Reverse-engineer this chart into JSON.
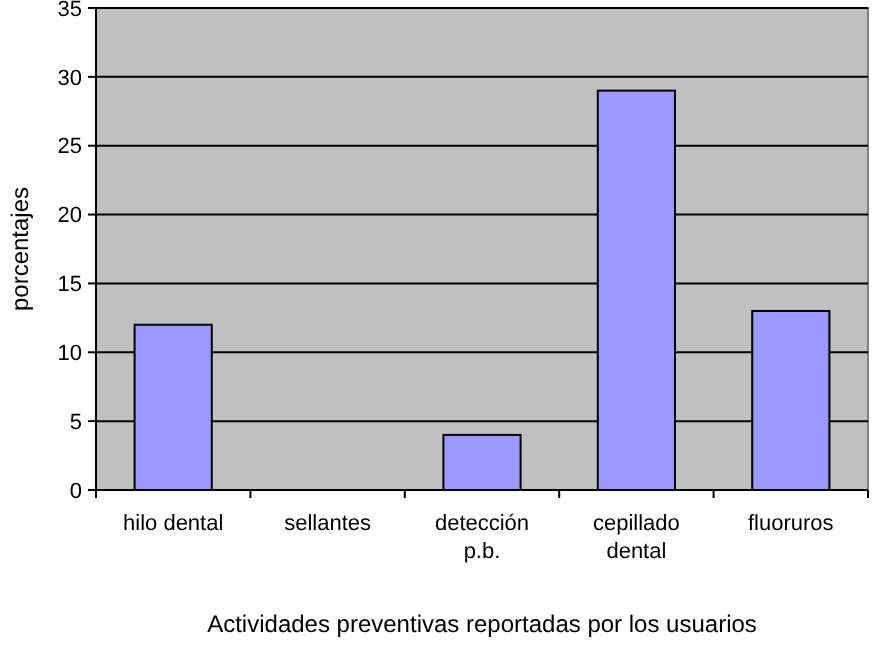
{
  "chart_data": {
    "type": "bar",
    "xlabel": "Actividades preventivas reportadas por los usuarios",
    "ylabel": "porcentajes",
    "categories": [
      "hilo dental",
      "sellantes",
      "detección p.b.",
      "cepillado dental",
      "fluoruros"
    ],
    "values": [
      12,
      0,
      4,
      29,
      13
    ],
    "color": "#9999ff",
    "ylim": [
      0,
      35
    ],
    "yticks": [
      0,
      5,
      10,
      15,
      20,
      25,
      30,
      35
    ],
    "grid": "y"
  }
}
